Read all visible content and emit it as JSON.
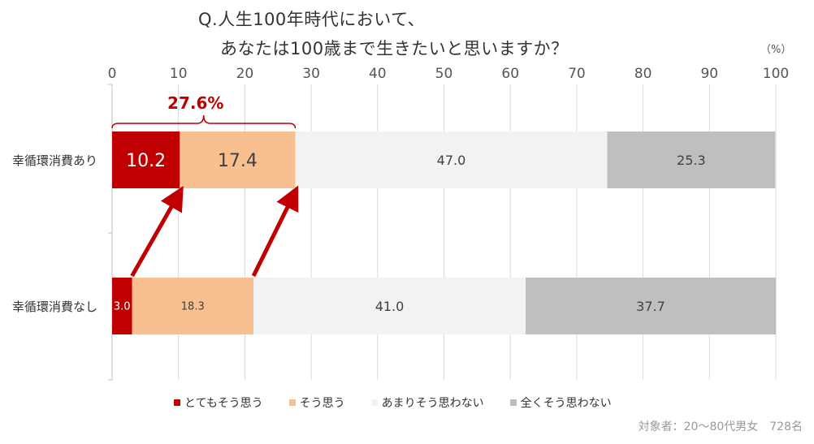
{
  "title": {
    "line1": "Q.人生100年時代において、",
    "line2": "あなたは100歳まで生きたいと思いますか？"
  },
  "unit_label": "（%）",
  "footnote": "対象者：20～80代男女　728名",
  "callout": {
    "label": "27.6%",
    "color": "#c00000"
  },
  "chart_data": {
    "type": "bar",
    "orientation": "horizontal",
    "stacked": true,
    "xlim": [
      0,
      100
    ],
    "xticks": [
      0,
      10,
      20,
      30,
      40,
      50,
      60,
      70,
      80,
      90,
      100
    ],
    "xaxis_position": "top",
    "grid": true,
    "legend_position": "bottom",
    "categories": [
      "幸循環消費あり",
      "幸循環消費なし"
    ],
    "series": [
      {
        "name": "とてもそう思う",
        "color": "#c00000",
        "label_color": "#ffffff",
        "values": [
          10.2,
          3.0
        ]
      },
      {
        "name": "そう思う",
        "color": "#f8c090",
        "label_color": "#404040",
        "values": [
          17.4,
          18.3
        ]
      },
      {
        "name": "あまりそう思わない",
        "color": "#f2f2f2",
        "label_color": "#404040",
        "values": [
          47.0,
          41.0
        ]
      },
      {
        "name": "全くそう思わない",
        "color": "#bfbfbf",
        "label_color": "#404040",
        "values": [
          25.3,
          37.7
        ]
      }
    ],
    "data_label_sizes": [
      [
        22,
        13
      ],
      [
        22,
        13
      ],
      [
        16,
        16
      ],
      [
        16,
        16
      ]
    ]
  }
}
